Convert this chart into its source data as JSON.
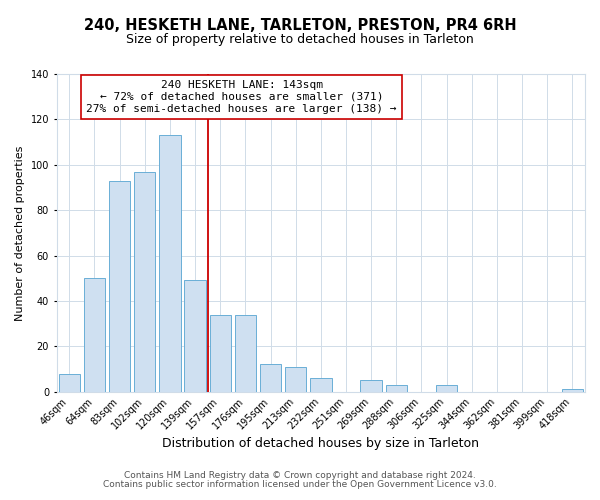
{
  "title": "240, HESKETH LANE, TARLETON, PRESTON, PR4 6RH",
  "subtitle": "Size of property relative to detached houses in Tarleton",
  "xlabel": "Distribution of detached houses by size in Tarleton",
  "ylabel": "Number of detached properties",
  "bar_labels": [
    "46sqm",
    "64sqm",
    "83sqm",
    "102sqm",
    "120sqm",
    "139sqm",
    "157sqm",
    "176sqm",
    "195sqm",
    "213sqm",
    "232sqm",
    "251sqm",
    "269sqm",
    "288sqm",
    "306sqm",
    "325sqm",
    "344sqm",
    "362sqm",
    "381sqm",
    "399sqm",
    "418sqm"
  ],
  "bar_values": [
    8,
    50,
    93,
    97,
    113,
    49,
    34,
    34,
    12,
    11,
    6,
    0,
    5,
    3,
    0,
    3,
    0,
    0,
    0,
    0,
    1
  ],
  "bar_color": "#cfe0f1",
  "bar_edge_color": "#6aaed6",
  "vline_x": 5.5,
  "vline_color": "#cc0000",
  "annotation_title": "240 HESKETH LANE: 143sqm",
  "annotation_line1": "← 72% of detached houses are smaller (371)",
  "annotation_line2": "27% of semi-detached houses are larger (138) →",
  "annotation_box_color": "#ffffff",
  "annotation_box_edge": "#cc0000",
  "ylim": [
    0,
    140
  ],
  "yticks": [
    0,
    20,
    40,
    60,
    80,
    100,
    120,
    140
  ],
  "footer1": "Contains HM Land Registry data © Crown copyright and database right 2024.",
  "footer2": "Contains public sector information licensed under the Open Government Licence v3.0.",
  "title_fontsize": 10.5,
  "subtitle_fontsize": 9,
  "xlabel_fontsize": 9,
  "ylabel_fontsize": 8,
  "tick_fontsize": 7,
  "annotation_fontsize": 8,
  "footer_fontsize": 6.5,
  "grid_color": "#d0dce8"
}
